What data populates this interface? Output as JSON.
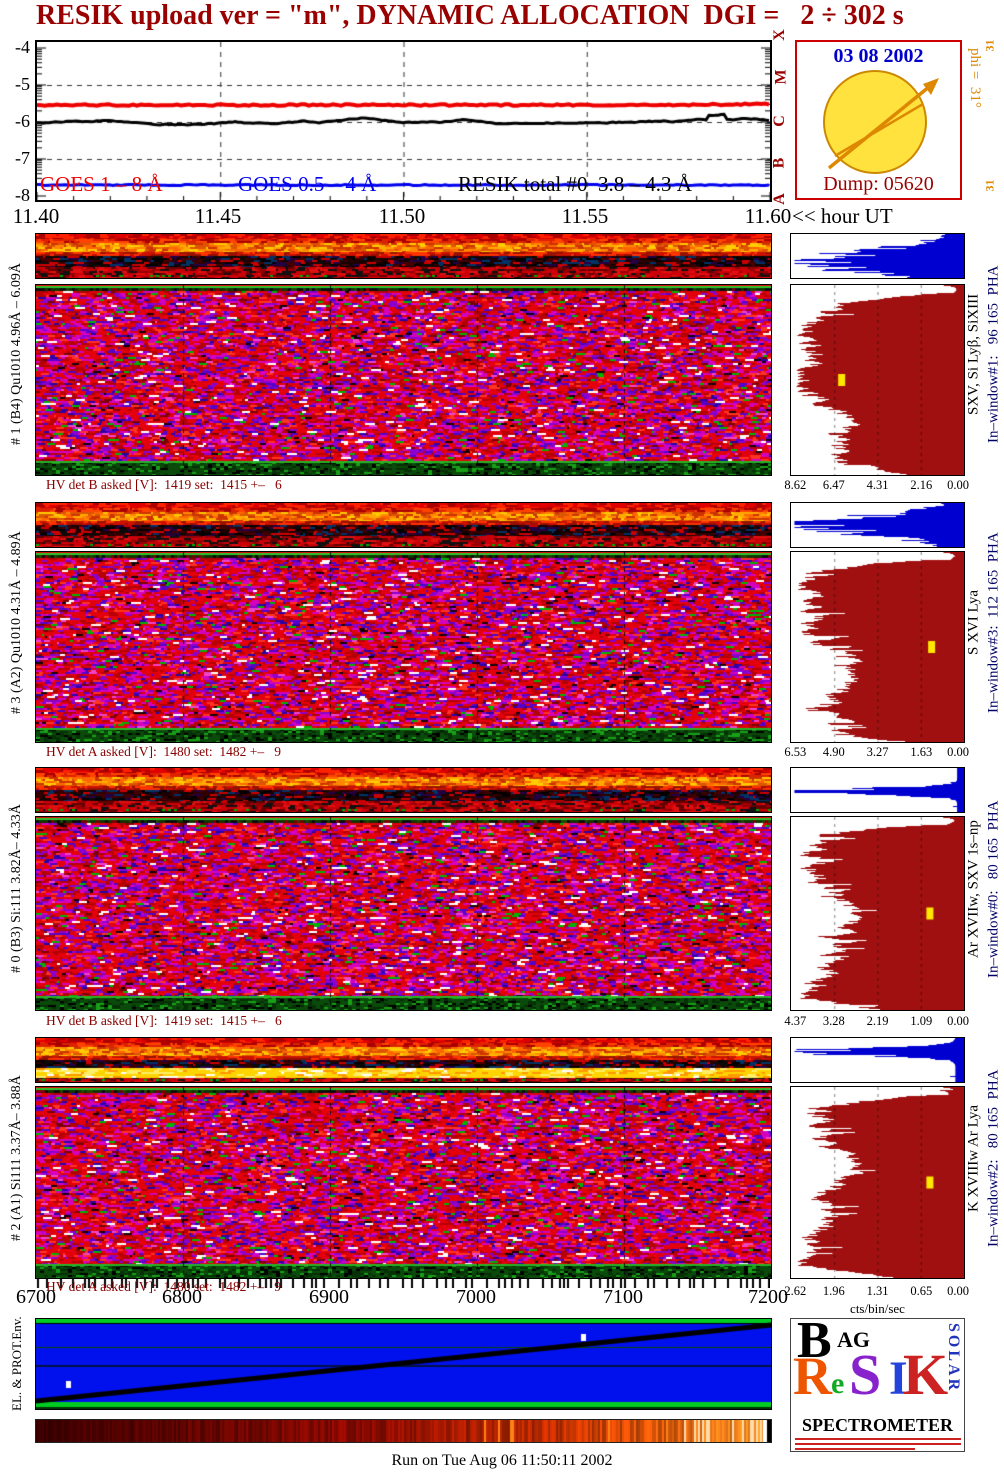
{
  "title": "RESIK upload ver = \"m\", DYNAMIC ALLOCATION  DGI =   2 ÷ 302 s",
  "goes_plot": {
    "y_ticks": [
      "-4",
      "-5",
      "-6",
      "-7",
      "-8"
    ],
    "x_ticks": [
      "11.40",
      "11.45",
      "11.50",
      "11.55",
      "11.60"
    ],
    "x_axis_suffix": "<< hour UT",
    "class_letters": [
      "X",
      "M",
      "C",
      "B",
      "A"
    ],
    "legend": [
      {
        "label": "GOES 1 – 8 Å",
        "color": "#ee0000"
      },
      {
        "label": "GOES 0.5 – 4 Å",
        "color": "#0000ee"
      },
      {
        "label": "RESIK total #0  3.8 – 4.3 Å",
        "color": "#000000"
      }
    ]
  },
  "info_box": {
    "date": "03 08 2002",
    "phi": "phi =  31°",
    "dump": "Dump: 05620",
    "side_mark": "31",
    "accent_border": "#cc0000",
    "date_color": "#0000cc",
    "phi_color": "#dd8800",
    "dump_color": "#990000"
  },
  "panels": [
    {
      "left_label": "# 1 (B4) Qu1010 4.96Å – 6.09Å",
      "hv_text": "HV det B asked [V]:  1419 set:  1415 +–   6",
      "pha_axis": [
        "8.62",
        "6.47",
        "4.31",
        "2.16",
        "0.00"
      ],
      "line_label": "SXV, Si Lyβ, SiXIII",
      "window_label": "In–window#1:   96 165  PHA"
    },
    {
      "left_label": "# 3 (A2) Qu1010 4.31Å – 4.89Å",
      "hv_text": "HV det A asked [V]:  1480 set:  1482 +–   9",
      "pha_axis": [
        "6.53",
        "4.90",
        "3.27",
        "1.63",
        "0.00"
      ],
      "line_label": "S XVI Lya",
      "window_label": "In–window#3:  112 165  PHA"
    },
    {
      "left_label": "# 0 (B3) Si:111 3.82Å– 4.33Å",
      "hv_text": "HV det B asked [V]:  1419 set:  1415 +–   6",
      "pha_axis": [
        "4.37",
        "3.28",
        "2.19",
        "1.09",
        "0.00"
      ],
      "line_label": "Ar XVIIw, SXV 1s–np",
      "window_label": "In–window#0:   80 165  PHA"
    },
    {
      "left_label": "# 2 (A1) Si111 3.37Å– 3.88Å",
      "hv_text": "HV det A asked [V]:  1480 set:  1482 +–   9",
      "pha_axis": [
        "2.62",
        "1.96",
        "1.31",
        "0.65",
        "0.00"
      ],
      "line_label": "K XVIIIw Ar Lya",
      "window_label": "In–window#2:   80 165  PHA"
    }
  ],
  "bottom_axis": {
    "ticks": [
      "6700",
      "6800",
      "6900",
      "7000",
      "7100",
      "7200"
    ]
  },
  "pha_axis_unit": "cts/bin/sec",
  "env_panel": {
    "left_label": "EL. & PROT.Env."
  },
  "logo": {
    "top": "B",
    "top2": "AG",
    "letters": [
      {
        "ch": "R",
        "color": "#ee5500"
      },
      {
        "ch": "e",
        "color": "#11aa22"
      },
      {
        "ch": "S",
        "color": "#8822cc"
      },
      {
        "ch": "I",
        "color": "#2244dd"
      },
      {
        "ch": "K",
        "color": "#cc2222"
      }
    ],
    "vertical": "SOLAR",
    "bottom": "SPECTROMETER"
  },
  "footer": "Run on Tue Aug 06 11:50:11 2002",
  "chart_data": [
    {
      "type": "line",
      "title": "GOES / RESIK flux vs time",
      "xlabel": "hour UT",
      "x_range": [
        11.4,
        11.6
      ],
      "ylabel": "log10 flux",
      "ylim": [
        -8,
        -4
      ],
      "grid": "dashed",
      "series": [
        {
          "name": "GOES 1 – 8 Å",
          "color": "#ee0000",
          "approx_level": -5.7,
          "shape": "nearly flat"
        },
        {
          "name": "RESIK total #0 3.8 – 4.3 Å",
          "color": "#000000",
          "approx_level": -5.95,
          "shape": "noisy, slowly rising"
        },
        {
          "name": "GOES 0.5 – 4 Å",
          "color": "#0000ee",
          "approx_level": -7.45,
          "shape": "flat"
        }
      ]
    },
    {
      "type": "heatmap",
      "title": "RESIK channel spectrograms (wavelength vs DGI number)",
      "x_range": [
        6700,
        7200
      ],
      "x_ticks": [
        6700,
        6800,
        6900,
        7000,
        7100,
        7200
      ],
      "channels": [
        {
          "id": "# 1 (B4) Qu1010",
          "lambda_range_A": [
            4.96,
            6.09
          ]
        },
        {
          "id": "# 3 (A2) Qu1010",
          "lambda_range_A": [
            4.31,
            4.89
          ]
        },
        {
          "id": "# 0 (B3) Si:111",
          "lambda_range_A": [
            3.82,
            4.33
          ]
        },
        {
          "id": "# 2 (A1) Si111",
          "lambda_range_A": [
            3.37,
            3.88
          ]
        }
      ],
      "palette": "red/magenta/purple noise with orange and dark bands on top, green edge bands"
    },
    {
      "type": "bar",
      "title": "PHA histograms (counts vs pulse height, bars anchored at right/zero)",
      "xlabel": "cts/bin/sec",
      "axis_max_per_panel": [
        8.62,
        6.53,
        4.37,
        2.62
      ],
      "colors": {
        "in_window": "#a01010",
        "out_window": "#0000d0",
        "marker": "#ffe800"
      }
    }
  ]
}
